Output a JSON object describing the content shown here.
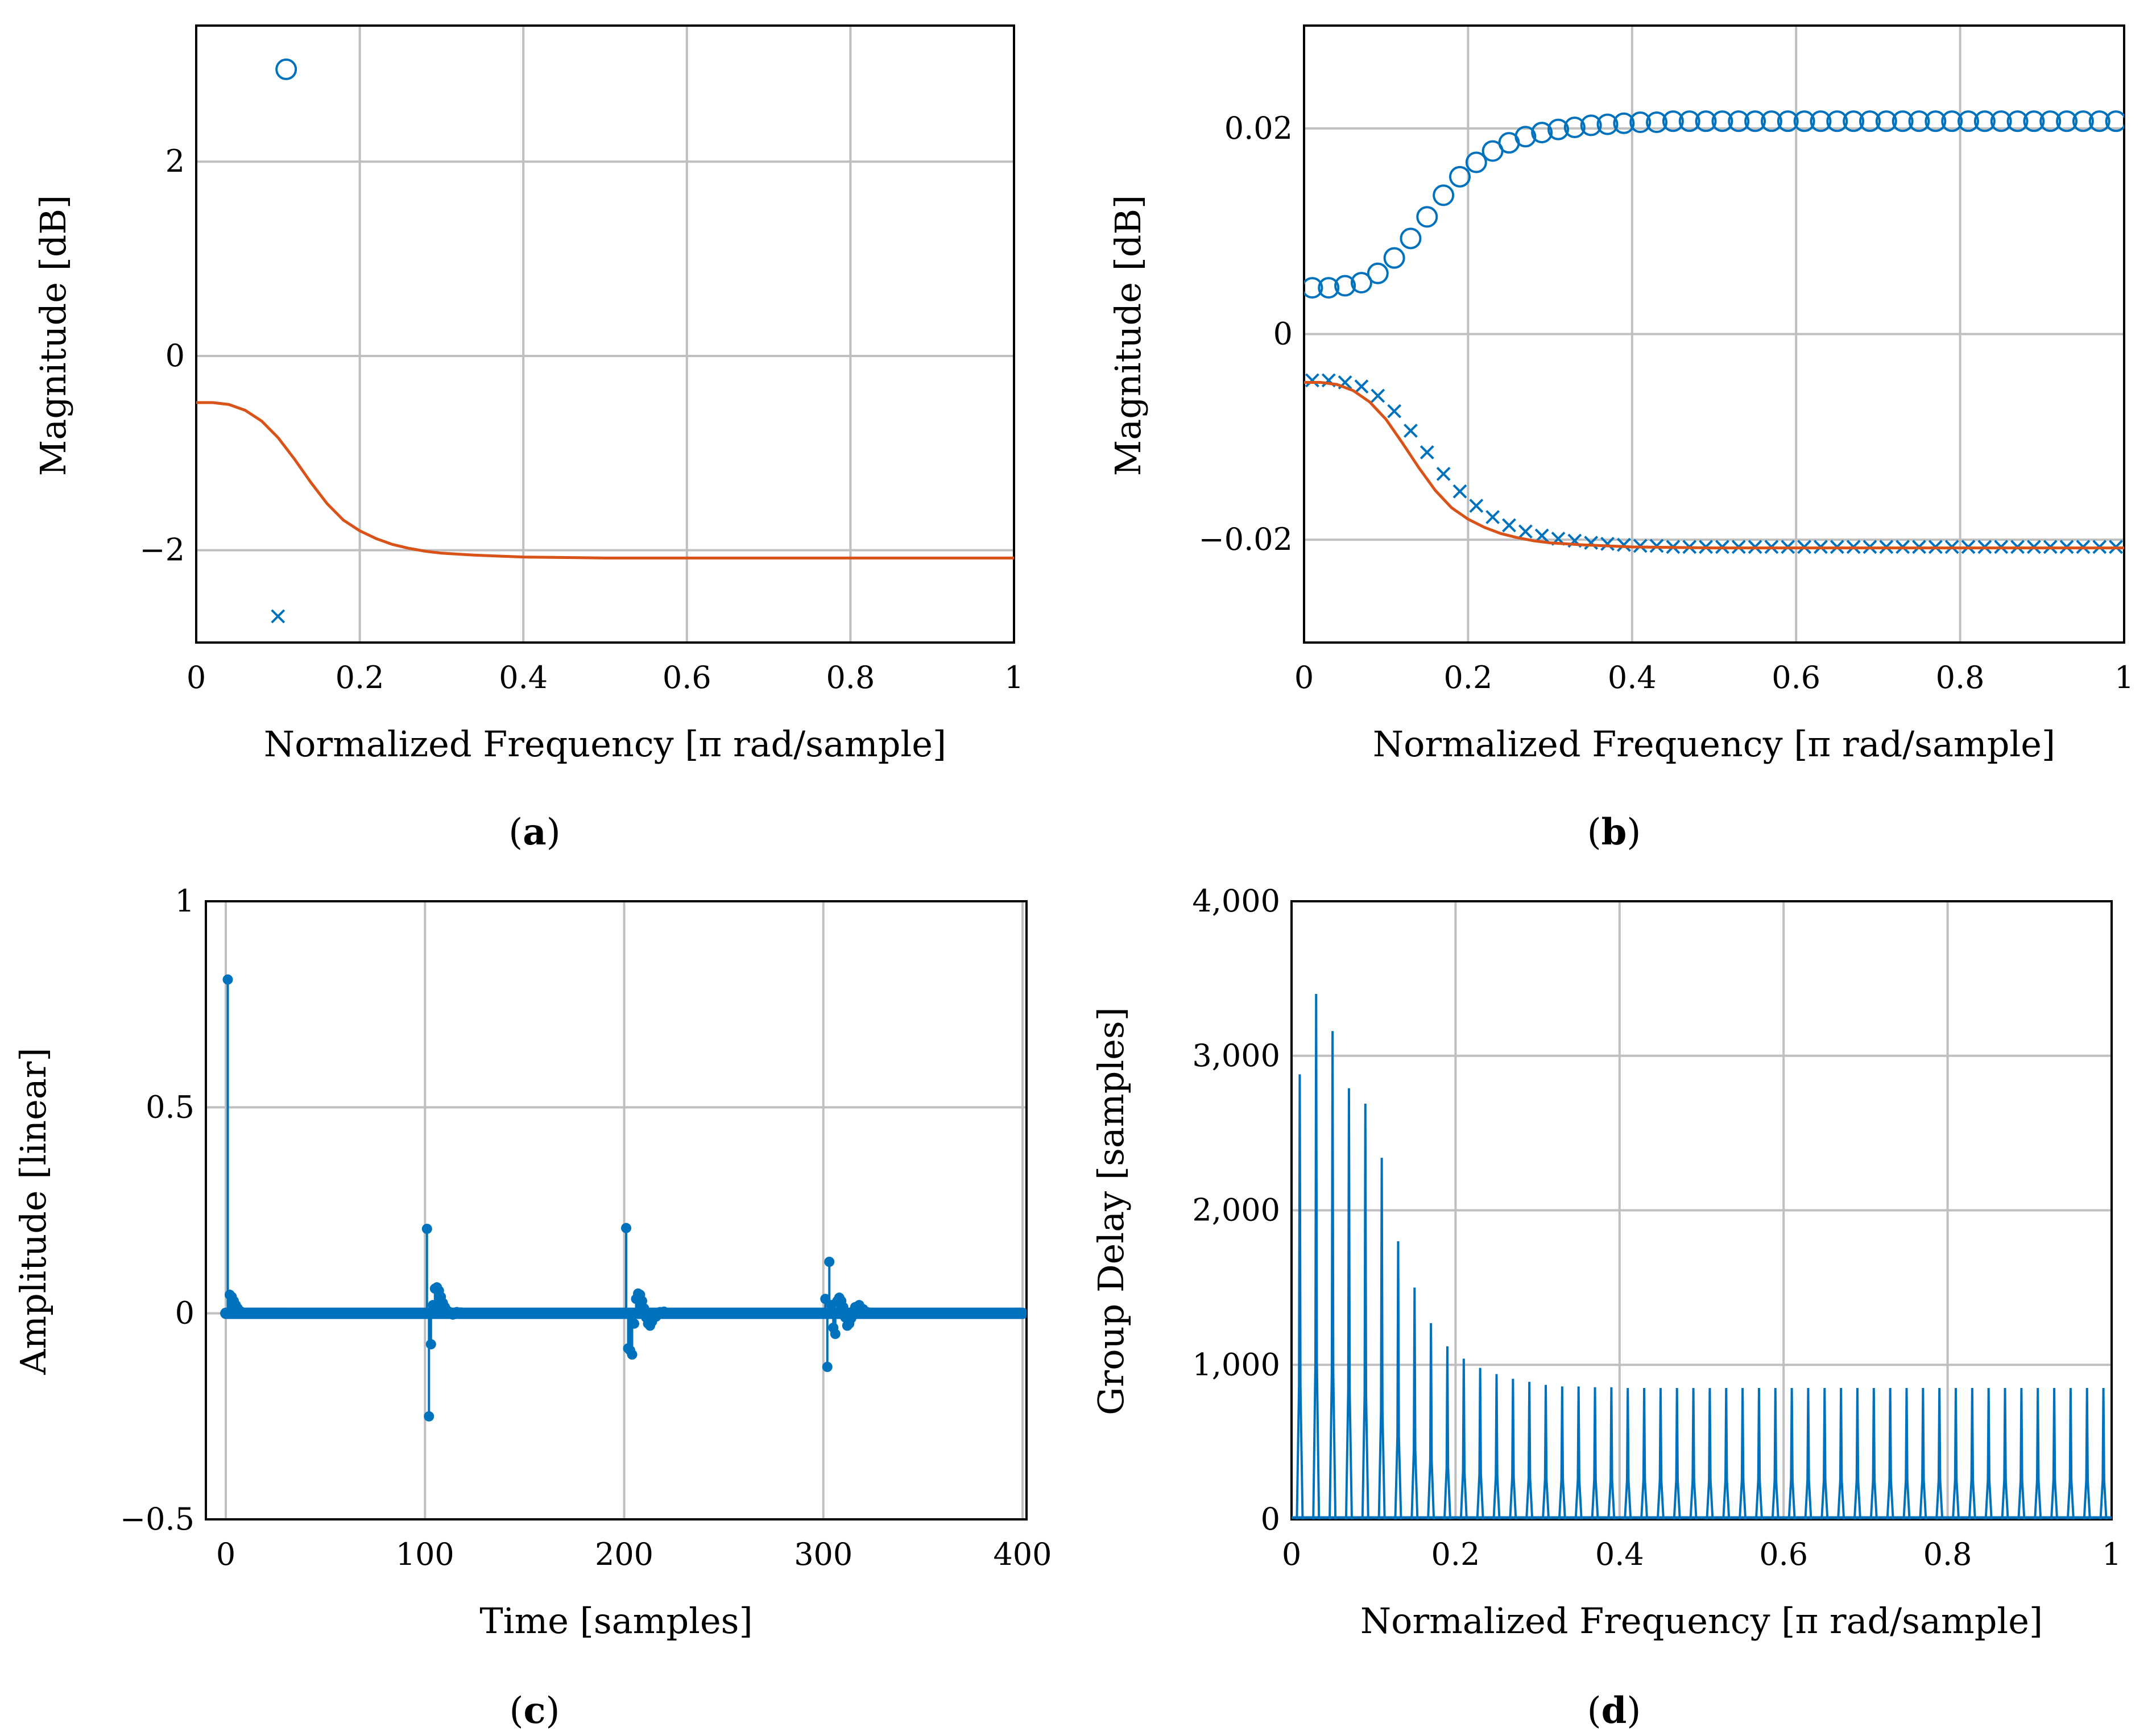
{
  "colors": {
    "data": "#0072bd",
    "fit": "#d95319",
    "grid": "#bfbfbf",
    "axis": "#000000"
  },
  "panels": [
    {
      "caption_label": "a"
    },
    {
      "caption_label": "b"
    },
    {
      "caption_label": "c"
    },
    {
      "caption_label": "d"
    }
  ],
  "chart_data": [
    {
      "type": "line",
      "panel": "a",
      "xlabel": "Normalized Frequency [π rad/sample]",
      "ylabel": "Magnitude [dB]",
      "xlim": [
        0,
        1
      ],
      "ylim": [
        -2.95,
        3.4
      ],
      "xticks": [
        0,
        0.2,
        0.4,
        0.6,
        0.8,
        1
      ],
      "xtick_labels": [
        "0",
        "0.2",
        "0.4",
        "0.6",
        "0.8",
        "1"
      ],
      "yticks": [
        -2,
        0,
        2
      ],
      "ytick_labels": [
        "−2",
        "0",
        "2"
      ],
      "grid": true,
      "series": [
        {
          "marker": "circle",
          "x": [
            0.11
          ],
          "y": [
            2.95
          ]
        },
        {
          "marker": "cross",
          "x": [
            0.1
          ],
          "y": [
            -2.68
          ]
        },
        {
          "style": "line",
          "x": [
            0,
            0.02,
            0.04,
            0.06,
            0.08,
            0.1,
            0.12,
            0.14,
            0.16,
            0.18,
            0.2,
            0.22,
            0.24,
            0.26,
            0.28,
            0.3,
            0.34,
            0.4,
            0.5,
            0.6,
            0.7,
            0.8,
            0.9,
            1.0
          ],
          "y": [
            -0.48,
            -0.48,
            -0.5,
            -0.56,
            -0.67,
            -0.84,
            -1.06,
            -1.3,
            -1.52,
            -1.69,
            -1.8,
            -1.88,
            -1.94,
            -1.98,
            -2.01,
            -2.03,
            -2.05,
            -2.07,
            -2.08,
            -2.08,
            -2.08,
            -2.08,
            -2.08,
            -2.08
          ]
        }
      ]
    },
    {
      "type": "scatter",
      "panel": "b",
      "xlabel": "Normalized Frequency [π rad/sample]",
      "ylabel": "Magnitude [dB]",
      "xlim": [
        0,
        1
      ],
      "ylim": [
        -0.03,
        0.03
      ],
      "xticks": [
        0,
        0.2,
        0.4,
        0.6,
        0.8,
        1
      ],
      "xtick_labels": [
        "0",
        "0.2",
        "0.4",
        "0.6",
        "0.8",
        "1"
      ],
      "yticks": [
        -0.02,
        0,
        0.02
      ],
      "ytick_labels": [
        "−0.02",
        "0",
        "0.02"
      ],
      "grid": true,
      "series": [
        {
          "marker": "circle",
          "x": [
            0.01,
            0.03,
            0.05,
            0.07,
            0.09,
            0.11,
            0.13,
            0.15,
            0.17,
            0.19,
            0.21,
            0.23,
            0.25,
            0.27,
            0.29,
            0.31,
            0.33,
            0.35,
            0.37,
            0.39,
            0.41,
            0.43,
            0.45,
            0.47,
            0.49,
            0.51,
            0.53,
            0.55,
            0.57,
            0.59,
            0.61,
            0.63,
            0.65,
            0.67,
            0.69,
            0.71,
            0.73,
            0.75,
            0.77,
            0.79,
            0.81,
            0.83,
            0.85,
            0.87,
            0.89,
            0.91,
            0.93,
            0.95,
            0.97,
            0.99
          ],
          "y": [
            0.0045,
            0.0045,
            0.0047,
            0.005,
            0.0059,
            0.0074,
            0.0093,
            0.0114,
            0.0135,
            0.0153,
            0.0167,
            0.0178,
            0.0186,
            0.0192,
            0.0196,
            0.0199,
            0.0201,
            0.0203,
            0.0204,
            0.0205,
            0.0206,
            0.0206,
            0.0207,
            0.0207,
            0.0207,
            0.0207,
            0.0207,
            0.0207,
            0.0207,
            0.0207,
            0.0207,
            0.0207,
            0.0207,
            0.0207,
            0.0207,
            0.0207,
            0.0207,
            0.0207,
            0.0207,
            0.0207,
            0.0207,
            0.0207,
            0.0207,
            0.0207,
            0.0207,
            0.0207,
            0.0207,
            0.0207,
            0.0207,
            0.0207
          ]
        },
        {
          "marker": "cross",
          "x": [
            0.01,
            0.03,
            0.05,
            0.07,
            0.09,
            0.11,
            0.13,
            0.15,
            0.17,
            0.19,
            0.21,
            0.23,
            0.25,
            0.27,
            0.29,
            0.31,
            0.33,
            0.35,
            0.37,
            0.39,
            0.41,
            0.43,
            0.45,
            0.47,
            0.49,
            0.51,
            0.53,
            0.55,
            0.57,
            0.59,
            0.61,
            0.63,
            0.65,
            0.67,
            0.69,
            0.71,
            0.73,
            0.75,
            0.77,
            0.79,
            0.81,
            0.83,
            0.85,
            0.87,
            0.89,
            0.91,
            0.93,
            0.95,
            0.97,
            0.99
          ],
          "y": [
            -0.0045,
            -0.0045,
            -0.0047,
            -0.0051,
            -0.006,
            -0.0075,
            -0.0094,
            -0.0115,
            -0.0136,
            -0.0153,
            -0.0167,
            -0.0178,
            -0.0186,
            -0.0192,
            -0.0196,
            -0.0199,
            -0.0201,
            -0.0203,
            -0.0204,
            -0.0205,
            -0.0206,
            -0.0206,
            -0.0207,
            -0.0207,
            -0.0207,
            -0.0207,
            -0.0207,
            -0.0207,
            -0.0207,
            -0.0207,
            -0.0207,
            -0.0207,
            -0.0207,
            -0.0207,
            -0.0207,
            -0.0207,
            -0.0207,
            -0.0207,
            -0.0207,
            -0.0207,
            -0.0207,
            -0.0207,
            -0.0207,
            -0.0207,
            -0.0207,
            -0.0207,
            -0.0207,
            -0.0207,
            -0.0207,
            -0.0207
          ]
        },
        {
          "style": "line",
          "x": [
            0,
            0.02,
            0.04,
            0.06,
            0.08,
            0.1,
            0.12,
            0.14,
            0.16,
            0.18,
            0.2,
            0.22,
            0.24,
            0.26,
            0.28,
            0.3,
            0.34,
            0.4,
            0.5,
            0.6,
            0.7,
            0.8,
            0.9,
            1.0
          ],
          "y": [
            -0.0047,
            -0.0047,
            -0.0049,
            -0.0055,
            -0.0066,
            -0.0083,
            -0.0106,
            -0.013,
            -0.0152,
            -0.0169,
            -0.018,
            -0.0188,
            -0.0194,
            -0.0198,
            -0.0201,
            -0.0203,
            -0.0205,
            -0.0207,
            -0.0208,
            -0.0208,
            -0.0208,
            -0.0208,
            -0.0208,
            -0.0208
          ]
        }
      ]
    },
    {
      "type": "stem",
      "panel": "c",
      "xlabel": "Time [samples]",
      "ylabel": "Amplitude [linear]",
      "xlim": [
        -10,
        402
      ],
      "ylim": [
        -0.5,
        1
      ],
      "xticks": [
        0,
        100,
        200,
        300,
        400
      ],
      "xtick_labels": [
        "0",
        "100",
        "200",
        "300",
        "400"
      ],
      "yticks": [
        -0.5,
        0,
        0.5,
        1
      ],
      "ytick_labels": [
        "−0.5",
        "0",
        "0.5",
        "1"
      ],
      "grid": true,
      "baseline_range": [
        0,
        400
      ],
      "series": [
        {
          "name": "",
          "x": [
            1,
            2,
            3,
            4,
            5,
            6,
            7,
            8,
            101,
            102,
            103,
            104,
            105,
            106,
            107,
            108,
            109,
            110,
            111,
            112,
            114,
            116,
            118,
            201,
            202,
            203,
            204,
            205,
            206,
            207,
            208,
            209,
            210,
            211,
            212,
            213,
            214,
            216,
            218,
            220,
            301,
            302,
            303,
            304,
            305,
            306,
            307,
            308,
            309,
            310,
            311,
            312,
            313,
            314,
            315,
            316,
            318,
            320,
            322,
            324
          ],
          "y": [
            0.81,
            0.045,
            0.04,
            0.03,
            0.02,
            0.012,
            0.006,
            0.003,
            0.205,
            -0.25,
            -0.075,
            0.02,
            0.06,
            0.063,
            0.055,
            0.04,
            0.025,
            0.015,
            0.007,
            0.004,
            -0.003,
            0.003,
            0.002,
            0.207,
            -0.085,
            -0.09,
            -0.1,
            -0.025,
            0.035,
            0.048,
            0.045,
            0.03,
            0.012,
            -0.01,
            -0.025,
            -0.03,
            -0.02,
            -0.008,
            0.003,
            0.004,
            0.035,
            -0.13,
            0.125,
            0.02,
            -0.035,
            -0.05,
            0.03,
            0.038,
            0.03,
            0.015,
            -0.01,
            -0.03,
            -0.025,
            -0.012,
            0.005,
            0.015,
            0.02,
            0.01,
            0.003,
            0.001
          ]
        }
      ]
    },
    {
      "type": "line",
      "panel": "d",
      "xlabel": "Normalized Frequency [π rad/sample]",
      "ylabel": "Group Delay [samples]",
      "xlim": [
        0,
        1
      ],
      "ylim": [
        0,
        4000
      ],
      "xticks": [
        0,
        0.2,
        0.4,
        0.6,
        0.8,
        1
      ],
      "xtick_labels": [
        "0",
        "0.2",
        "0.4",
        "0.6",
        "0.8",
        "1"
      ],
      "yticks": [
        0,
        1000,
        2000,
        3000,
        4000
      ],
      "ytick_labels": [
        "0",
        "1,000",
        "2,000",
        "3,000",
        "4,000"
      ],
      "grid": true,
      "spike_width": 0.0035,
      "series": [
        {
          "name": "",
          "peak_x": [
            0.01,
            0.03,
            0.05,
            0.07,
            0.09,
            0.11,
            0.13,
            0.15,
            0.17,
            0.19,
            0.21,
            0.23,
            0.25,
            0.27,
            0.29,
            0.31,
            0.33,
            0.35,
            0.37,
            0.39,
            0.41,
            0.43,
            0.45,
            0.47,
            0.49,
            0.51,
            0.53,
            0.55,
            0.57,
            0.59,
            0.61,
            0.63,
            0.65,
            0.67,
            0.69,
            0.71,
            0.73,
            0.75,
            0.77,
            0.79,
            0.81,
            0.83,
            0.85,
            0.87,
            0.89,
            0.91,
            0.93,
            0.95,
            0.97,
            0.99
          ],
          "peak_y": [
            2880,
            3400,
            3160,
            2790,
            2690,
            2340,
            1800,
            1500,
            1270,
            1120,
            1040,
            980,
            940,
            910,
            890,
            870,
            860,
            860,
            855,
            855,
            850,
            850,
            850,
            850,
            850,
            850,
            850,
            850,
            850,
            850,
            850,
            850,
            850,
            850,
            850,
            850,
            850,
            850,
            850,
            850,
            850,
            850,
            850,
            850,
            850,
            850,
            850,
            850,
            850,
            850
          ]
        }
      ]
    }
  ]
}
